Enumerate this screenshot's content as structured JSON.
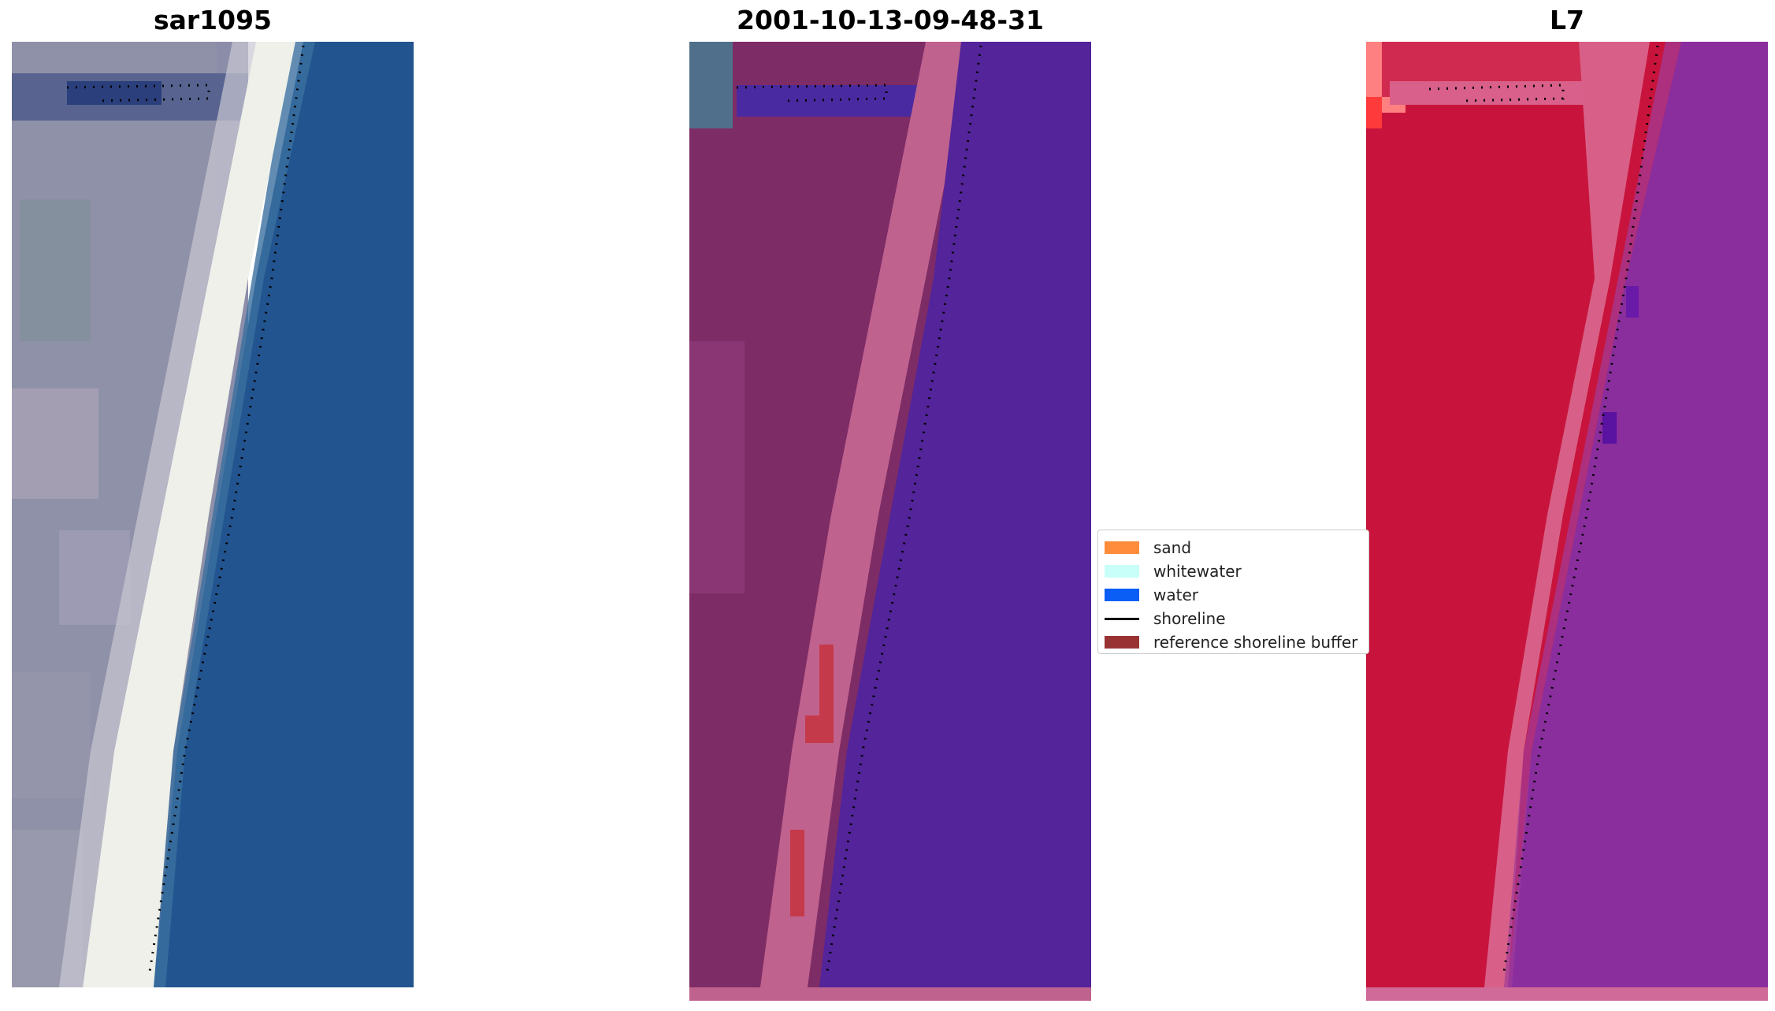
{
  "panels": [
    {
      "title": "sar1095"
    },
    {
      "title": "2001-10-13-09-48-31"
    },
    {
      "title": "L7"
    }
  ],
  "legend": {
    "items": [
      {
        "label": "sand",
        "color": "#ff8c3a",
        "kind": "patch"
      },
      {
        "label": "whitewater",
        "color": "#c8fff8",
        "kind": "patch"
      },
      {
        "label": "water",
        "color": "#0a5ef5",
        "kind": "patch"
      },
      {
        "label": "shoreline",
        "color": "#000000",
        "kind": "line"
      },
      {
        "label": "reference shoreline buffer",
        "color": "#993333",
        "kind": "patch"
      }
    ]
  },
  "colors": {
    "rgb_water": "#22548f",
    "rgb_beach_white": "#f2f3ee",
    "rgb_land": "#8d8fae",
    "class_land": "#7e2c66",
    "class_beach": "#c0628e",
    "class_water": "#53249a",
    "class_buffer": "#c53a4a",
    "falsecolor_land": "#c8143c",
    "falsecolor_beach": "#d86088",
    "falsecolor_water": "#8a2e9e",
    "falsecolor_bright": "#ff8080"
  }
}
